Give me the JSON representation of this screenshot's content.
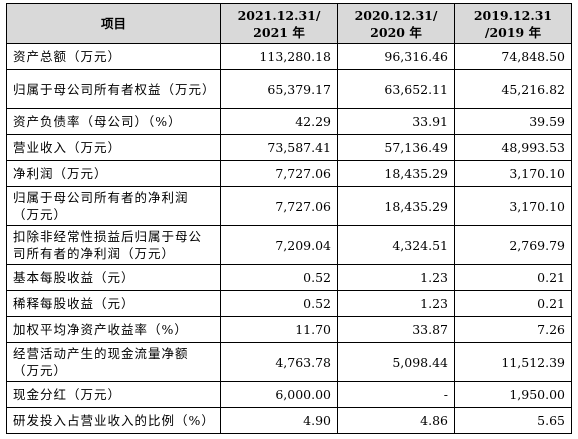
{
  "table": {
    "headers": [
      "项目",
      "2021.12.31/\n2021 年",
      "2020.12.31/\n2020 年",
      "2019.12.31\n/2019 年"
    ],
    "rows": [
      {
        "label": "资产总额（万元）",
        "values": [
          "113,280.18",
          "96,316.46",
          "74,848.50"
        ],
        "lines": 1
      },
      {
        "label": "归属于母公司所有者权益（万元）",
        "values": [
          "65,379.17",
          "63,652.11",
          "45,216.82"
        ],
        "lines": 2
      },
      {
        "label": "资产负债率（母公司）（%）",
        "values": [
          "42.29",
          "33.91",
          "39.59"
        ],
        "lines": 1
      },
      {
        "label": "营业收入（万元）",
        "values": [
          "73,587.41",
          "57,136.49",
          "48,993.53"
        ],
        "lines": 1
      },
      {
        "label": "净利润（万元）",
        "values": [
          "7,727.06",
          "18,435.29",
          "3,170.10"
        ],
        "lines": 1
      },
      {
        "label": "归属于母公司所有者的净利润（万元）",
        "values": [
          "7,727.06",
          "18,435.29",
          "3,170.10"
        ],
        "lines": 2
      },
      {
        "label": "扣除非经常性损益后归属于母公司所有者的净利润（万元）",
        "values": [
          "7,209.04",
          "4,324.51",
          "2,769.79"
        ],
        "lines": 2
      },
      {
        "label": "基本每股收益（元）",
        "values": [
          "0.52",
          "1.23",
          "0.21"
        ],
        "lines": 1
      },
      {
        "label": "稀释每股收益（元）",
        "values": [
          "0.52",
          "1.23",
          "0.21"
        ],
        "lines": 1
      },
      {
        "label": "加权平均净资产收益率（%）",
        "values": [
          "11.70",
          "33.87",
          "7.26"
        ],
        "lines": 1
      },
      {
        "label": "经营活动产生的现金流量净额（万元）",
        "values": [
          "4,763.78",
          "5,098.44",
          "11,512.39"
        ],
        "lines": 2
      },
      {
        "label": "现金分红（万元）",
        "values": [
          "6,000.00",
          "-",
          "1,950.00"
        ],
        "lines": 1
      },
      {
        "label": "研发投入占营业收入的比例（%）",
        "values": [
          "4.90",
          "4.86",
          "5.65"
        ],
        "lines": 1
      }
    ]
  }
}
